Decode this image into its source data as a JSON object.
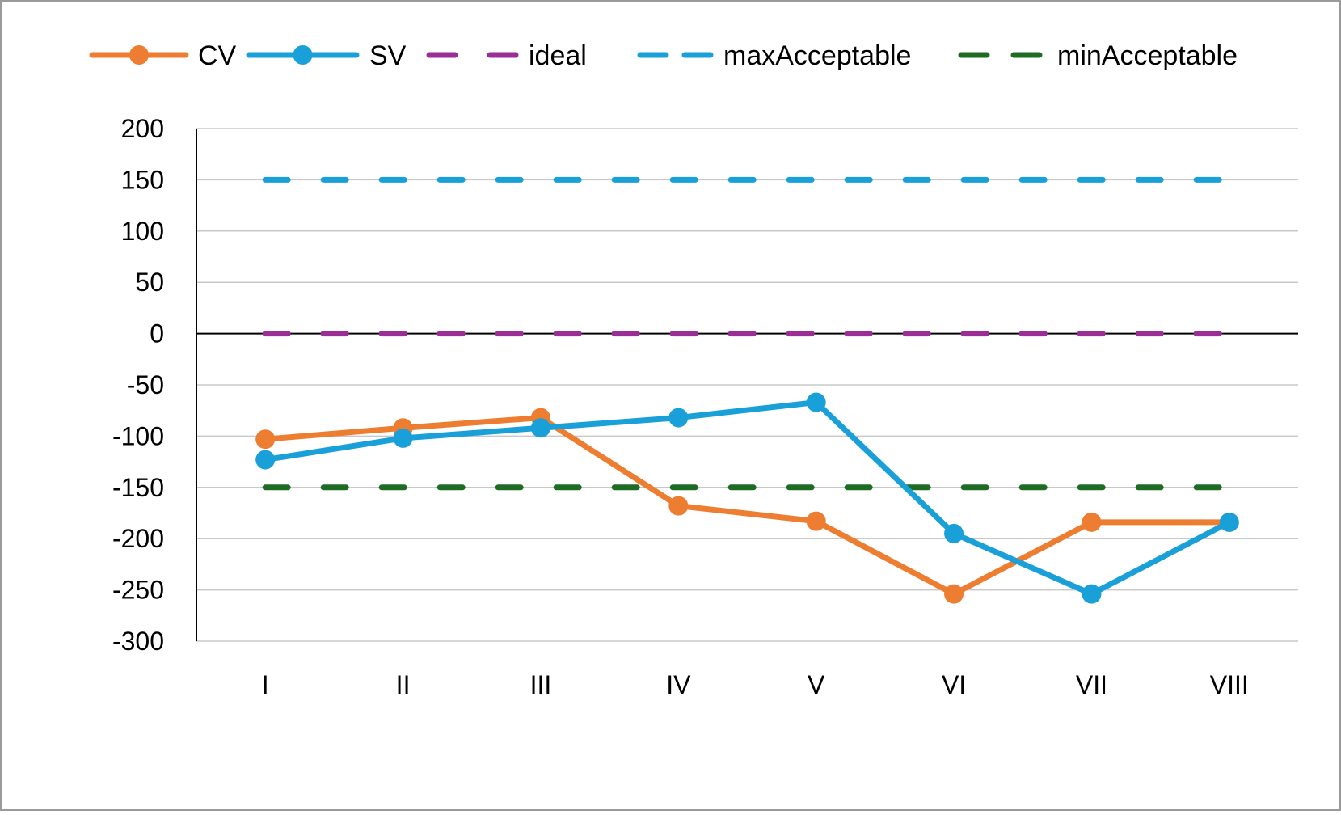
{
  "chart_data": {
    "type": "line",
    "title": "",
    "xlabel": "",
    "ylabel": "",
    "categories": [
      "I",
      "II",
      "III",
      "IV",
      "V",
      "VI",
      "VII",
      "VIII"
    ],
    "ylim": [
      -300,
      200
    ],
    "yticks": [
      200,
      150,
      100,
      50,
      0,
      -50,
      -100,
      -150,
      -200,
      -250,
      -300
    ],
    "grid": "horizontal",
    "legend_position": "top",
    "series": [
      {
        "name": "CV",
        "values": [
          -103,
          -92,
          -82,
          -168,
          -183,
          -254,
          -184,
          -184
        ],
        "color": "#ED7D31",
        "style": "solid",
        "markers": true
      },
      {
        "name": "SV",
        "values": [
          -123,
          -102,
          -92,
          -82,
          -67,
          -195,
          -254,
          -184
        ],
        "color": "#1AA0D8",
        "style": "solid",
        "markers": true
      },
      {
        "name": "ideal",
        "values": [
          0,
          0,
          0,
          0,
          0,
          0,
          0,
          0
        ],
        "color": "#9B2D96",
        "style": "dashed",
        "markers": false
      },
      {
        "name": "maxAcceptable",
        "values": [
          150,
          150,
          150,
          150,
          150,
          150,
          150,
          150
        ],
        "color": "#1AA0D8",
        "style": "dashed",
        "markers": false
      },
      {
        "name": "minAcceptable",
        "values": [
          -150,
          -150,
          -150,
          -150,
          -150,
          -150,
          -150,
          -150
        ],
        "color": "#1E6B24",
        "style": "dashed",
        "markers": false
      }
    ]
  }
}
